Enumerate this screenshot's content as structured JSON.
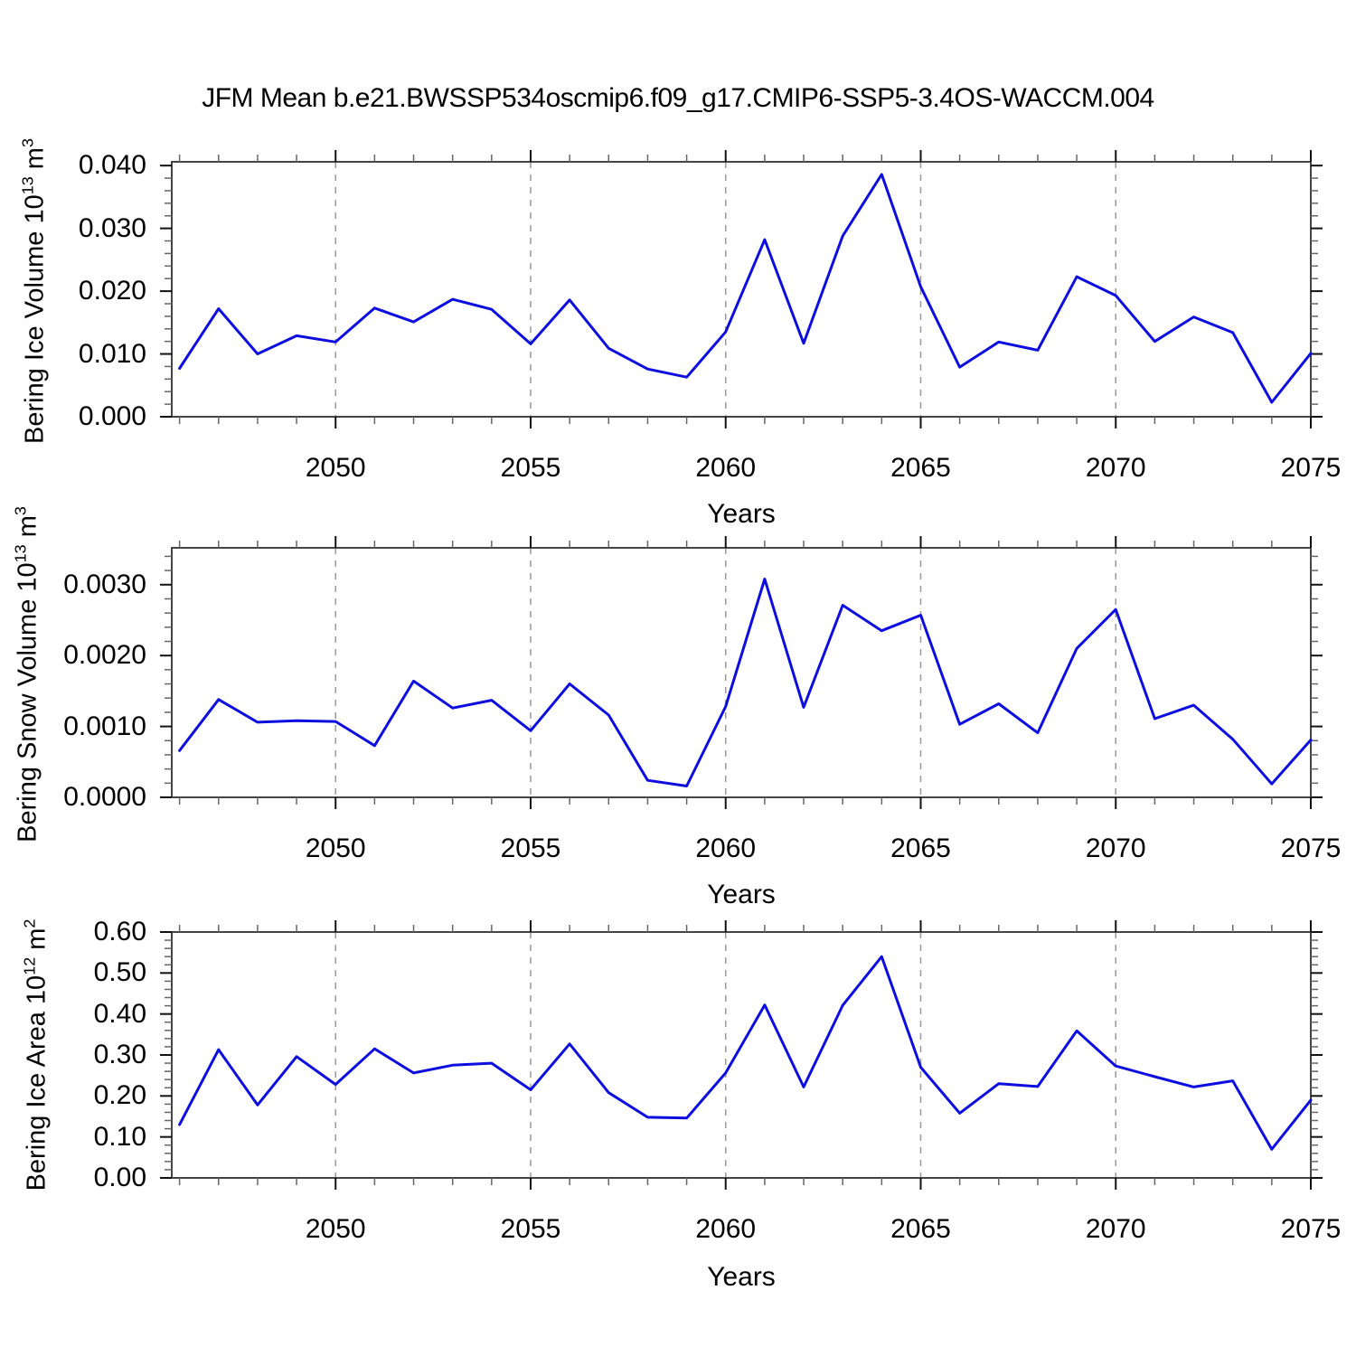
{
  "title": "JFM Mean b.e21.BWSSP534oscmip6.f09_g17.CMIP6-SSP5-3.4OS-WACCM.004",
  "xlabel": "Years",
  "line_color": "#0d0ddf",
  "grid_color": "#999999",
  "frame_color": "#444444",
  "chart_data": [
    {
      "type": "line",
      "id": "bering-ice-volume",
      "ylabel": {
        "base": "Bering Ice Volume 10",
        "exp1": "13",
        "unit": " m",
        "exp2": "3"
      },
      "xlabel": "Years",
      "x": [
        2046,
        2047,
        2048,
        2049,
        2050,
        2051,
        2052,
        2053,
        2054,
        2055,
        2056,
        2057,
        2058,
        2059,
        2060,
        2061,
        2062,
        2063,
        2064,
        2065,
        2066,
        2067,
        2068,
        2069,
        2070,
        2071,
        2072,
        2073,
        2074,
        2075
      ],
      "values": [
        0.0077,
        0.0172,
        0.01,
        0.0129,
        0.0119,
        0.0173,
        0.0151,
        0.0187,
        0.0171,
        0.0116,
        0.0186,
        0.0109,
        0.0076,
        0.0063,
        0.0135,
        0.0282,
        0.0117,
        0.0288,
        0.0386,
        0.0207,
        0.0079,
        0.0119,
        0.0106,
        0.0223,
        0.0193,
        0.012,
        0.0159,
        0.0134,
        0.0023,
        0.0101
      ],
      "xlim": [
        2045.8,
        2075
      ],
      "ylim": [
        0,
        0.0406
      ],
      "yticks": [
        {
          "v": 0.0,
          "label": "0.000"
        },
        {
          "v": 0.01,
          "label": "0.010"
        },
        {
          "v": 0.02,
          "label": "0.020"
        },
        {
          "v": 0.03,
          "label": "0.030"
        },
        {
          "v": 0.04,
          "label": "0.040"
        }
      ],
      "y_minor_step": 0.002,
      "xticks_major": [
        {
          "v": 2050,
          "label": "2050"
        },
        {
          "v": 2055,
          "label": "2055"
        },
        {
          "v": 2060,
          "label": "2060"
        },
        {
          "v": 2065,
          "label": "2065"
        },
        {
          "v": 2070,
          "label": "2070"
        },
        {
          "v": 2075,
          "label": "2075"
        }
      ],
      "x_minor_step": 1,
      "gridlines_x": [
        2050,
        2055,
        2060,
        2065,
        2070
      ],
      "grid_dashed": true,
      "legend": "none"
    },
    {
      "type": "line",
      "id": "bering-snow-volume",
      "ylabel": {
        "base": "Bering Snow Volume 10",
        "exp1": "13",
        "unit": " m",
        "exp2": "3"
      },
      "xlabel": "Years",
      "x": [
        2046,
        2047,
        2048,
        2049,
        2050,
        2051,
        2052,
        2053,
        2054,
        2055,
        2056,
        2057,
        2058,
        2059,
        2060,
        2061,
        2062,
        2063,
        2064,
        2065,
        2066,
        2067,
        2068,
        2069,
        2070,
        2071,
        2072,
        2073,
        2074,
        2075
      ],
      "values": [
        0.00066,
        0.00138,
        0.00106,
        0.00108,
        0.00107,
        0.00073,
        0.00164,
        0.00126,
        0.00137,
        0.00094,
        0.0016,
        0.00116,
        0.00024,
        0.00016,
        0.00128,
        0.00308,
        0.00127,
        0.00271,
        0.00235,
        0.00257,
        0.00103,
        0.00132,
        0.00091,
        0.0021,
        0.00265,
        0.00111,
        0.0013,
        0.00082,
        0.00019,
        0.00081
      ],
      "xlim": [
        2045.8,
        2075
      ],
      "ylim": [
        0,
        0.00352
      ],
      "yticks": [
        {
          "v": 0.0,
          "label": "0.0000"
        },
        {
          "v": 0.001,
          "label": "0.0010"
        },
        {
          "v": 0.002,
          "label": "0.0020"
        },
        {
          "v": 0.003,
          "label": "0.0030"
        }
      ],
      "y_minor_step": 0.0002,
      "xticks_major": [
        {
          "v": 2050,
          "label": "2050"
        },
        {
          "v": 2055,
          "label": "2055"
        },
        {
          "v": 2060,
          "label": "2060"
        },
        {
          "v": 2065,
          "label": "2065"
        },
        {
          "v": 2070,
          "label": "2070"
        },
        {
          "v": 2075,
          "label": "2075"
        }
      ],
      "x_minor_step": 1,
      "gridlines_x": [
        2050,
        2055,
        2060,
        2065,
        2070
      ],
      "grid_dashed": true,
      "legend": "none"
    },
    {
      "type": "line",
      "id": "bering-ice-area",
      "ylabel": {
        "base": "Bering Ice Area 10",
        "exp1": "12",
        "unit": " m",
        "exp2": "2"
      },
      "xlabel": "Years",
      "x": [
        2046,
        2047,
        2048,
        2049,
        2050,
        2051,
        2052,
        2053,
        2054,
        2055,
        2056,
        2057,
        2058,
        2059,
        2060,
        2061,
        2062,
        2063,
        2064,
        2065,
        2066,
        2067,
        2068,
        2069,
        2070,
        2071,
        2072,
        2073,
        2074,
        2075
      ],
      "values": [
        0.13,
        0.313,
        0.178,
        0.296,
        0.228,
        0.315,
        0.256,
        0.275,
        0.28,
        0.215,
        0.327,
        0.208,
        0.148,
        0.146,
        0.256,
        0.422,
        0.222,
        0.421,
        0.54,
        0.27,
        0.158,
        0.23,
        0.223,
        0.359,
        0.273,
        0.247,
        0.222,
        0.237,
        0.07,
        0.19
      ],
      "xlim": [
        2045.8,
        2075
      ],
      "ylim": [
        0,
        0.6
      ],
      "yticks": [
        {
          "v": 0.0,
          "label": "0.00"
        },
        {
          "v": 0.1,
          "label": "0.10"
        },
        {
          "v": 0.2,
          "label": "0.20"
        },
        {
          "v": 0.3,
          "label": "0.30"
        },
        {
          "v": 0.4,
          "label": "0.40"
        },
        {
          "v": 0.5,
          "label": "0.50"
        },
        {
          "v": 0.6,
          "label": "0.60"
        }
      ],
      "y_minor_step": 0.02,
      "xticks_major": [
        {
          "v": 2050,
          "label": "2050"
        },
        {
          "v": 2055,
          "label": "2055"
        },
        {
          "v": 2060,
          "label": "2060"
        },
        {
          "v": 2065,
          "label": "2065"
        },
        {
          "v": 2070,
          "label": "2070"
        },
        {
          "v": 2075,
          "label": "2075"
        }
      ],
      "x_minor_step": 1,
      "gridlines_x": [
        2050,
        2055,
        2060,
        2065,
        2070
      ],
      "grid_dashed": true,
      "legend": "none"
    }
  ]
}
